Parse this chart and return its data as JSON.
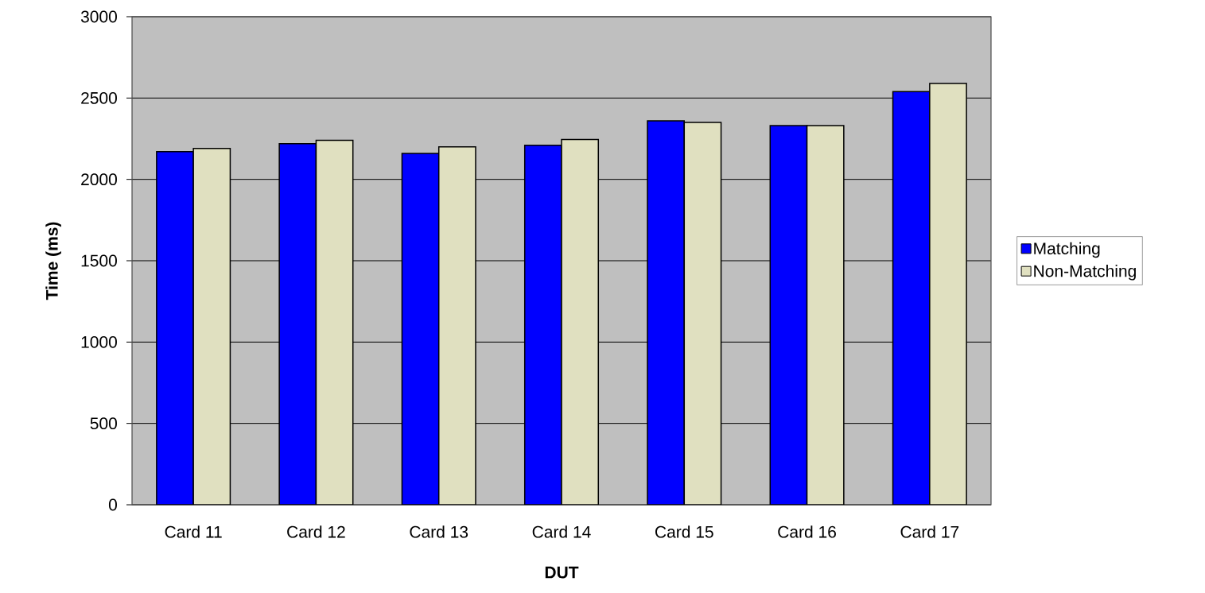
{
  "chart_data": {
    "type": "bar",
    "xlabel": "DUT",
    "ylabel": "Time (ms)",
    "categories": [
      "Card 11",
      "Card 12",
      "Card 13",
      "Card 14",
      "Card 15",
      "Card 16",
      "Card 17"
    ],
    "series": [
      {
        "name": "Matching",
        "color": "#0000ff",
        "values": [
          2170,
          2220,
          2160,
          2210,
          2360,
          2330,
          2540
        ]
      },
      {
        "name": "Non-Matching",
        "color": "#e0e0c0",
        "values": [
          2190,
          2240,
          2200,
          2245,
          2350,
          2330,
          2590
        ]
      }
    ],
    "ylim": [
      0,
      3000
    ],
    "yticks": [
      0,
      500,
      1000,
      1500,
      2000,
      2500,
      3000
    ],
    "grid": "y",
    "legend": "right"
  }
}
